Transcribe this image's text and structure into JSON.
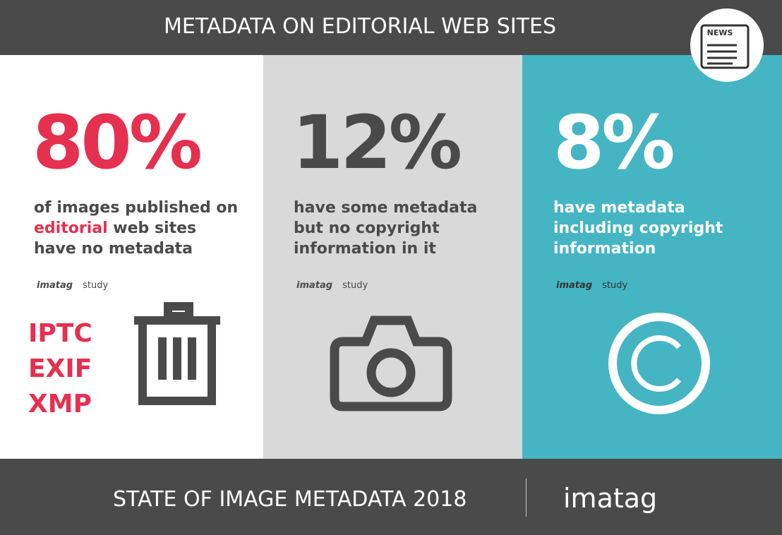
{
  "header": {
    "title": "METADATA ON EDITORIAL WEB SITES",
    "badge": "NEWS"
  },
  "panels": [
    {
      "stat": "80%",
      "description": {
        "before": "of images published on",
        "highlight": "editorial",
        "after": "web sites have no metadata"
      },
      "source": {
        "brand": "imatag",
        "label": "study"
      },
      "tags": [
        "IPTC",
        "EXIF",
        "XMP"
      ]
    },
    {
      "stat": "12%",
      "description": "have some metadata but no copyright information in it",
      "source": {
        "brand": "imatag",
        "label": "study"
      }
    },
    {
      "stat": "8%",
      "description": "have metadata including copyright information",
      "source": {
        "brand": "imatag",
        "label": "study"
      }
    }
  ],
  "footer": {
    "title": "STATE OF IMAGE METADATA 2018",
    "brand": "imatag"
  }
}
